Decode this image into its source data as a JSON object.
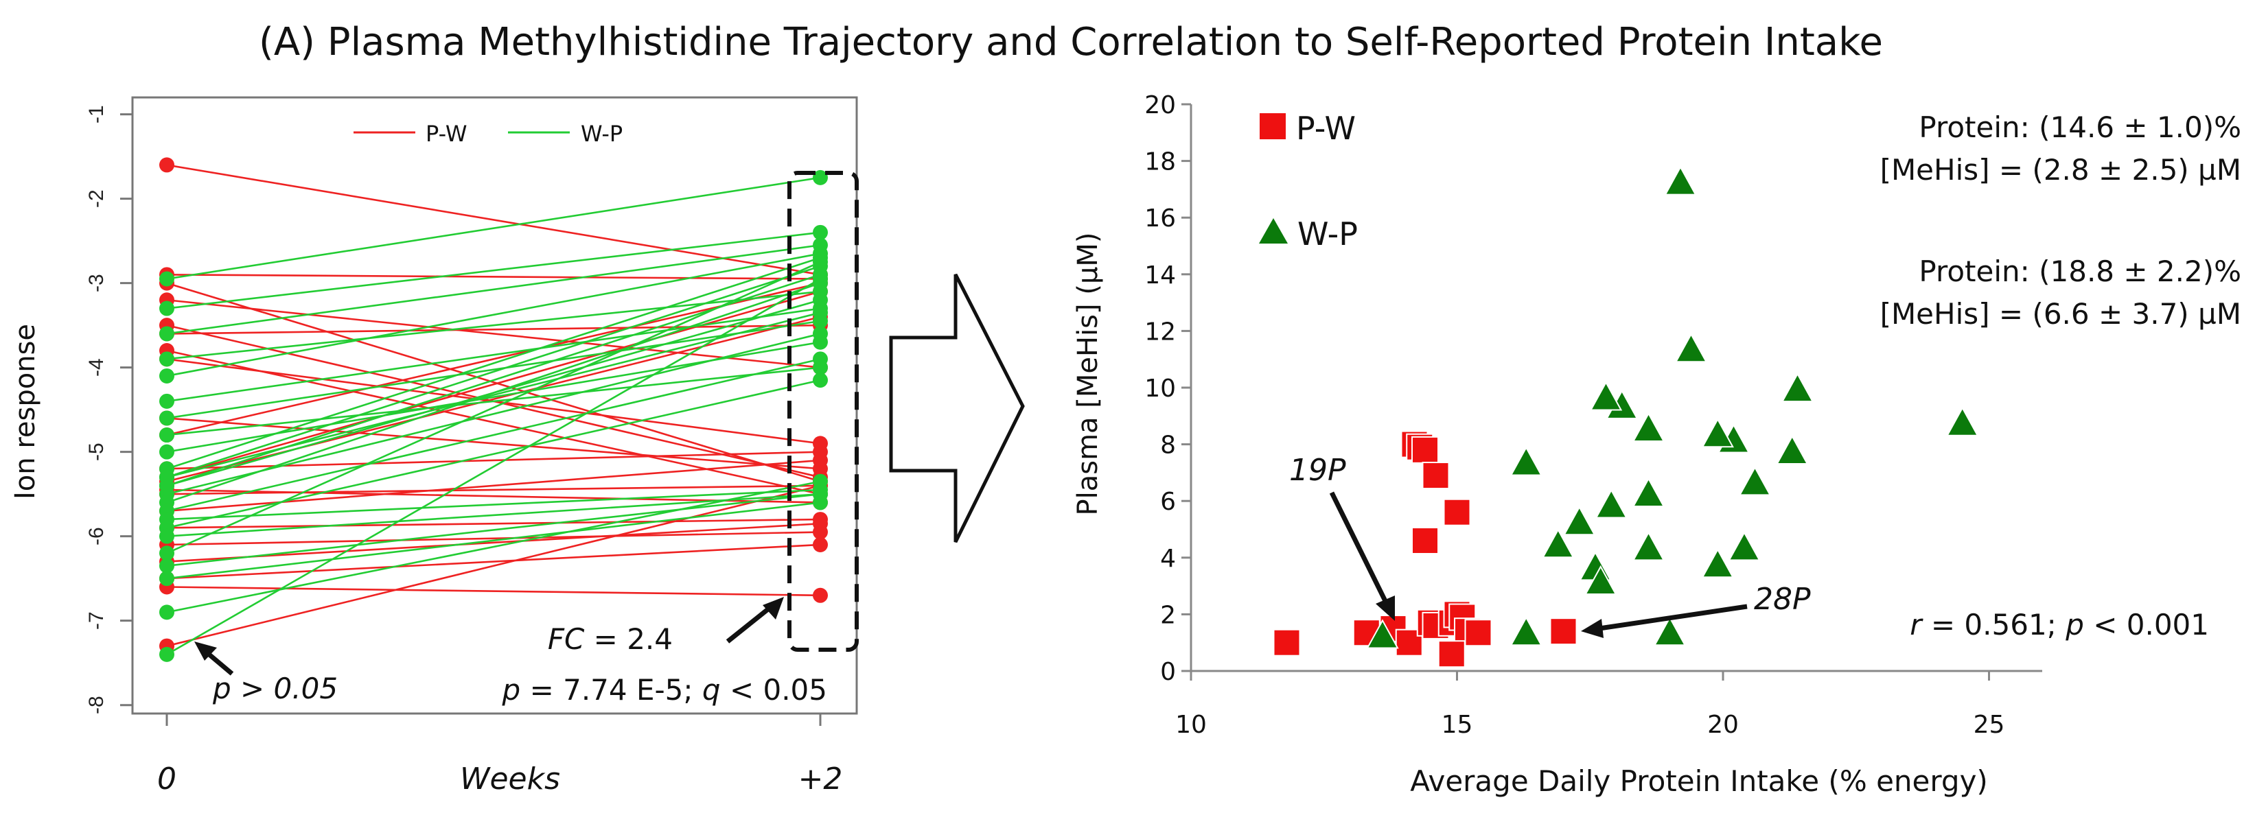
{
  "figure_title": "(A) Plasma Methylhistidine Trajectory and Correlation to Self-Reported Protein Intake",
  "colors": {
    "pw": "#ee2222",
    "wp": "#22cc33",
    "pw_square": "#ee1111",
    "wp_triangle": "#0b7a0b",
    "stat_pw": "#9a1515",
    "stat_wp": "#1f8a1f"
  },
  "chart_data": [
    {
      "type": "line",
      "name": "left-panel",
      "ylabel": "Ion response",
      "xlabel_center": "Weeks",
      "x_tick_labels": [
        "0",
        "+2"
      ],
      "y_tick_labels": [
        "-1",
        "-2",
        "-3",
        "-4",
        "-5",
        "-6",
        "-7",
        "-8"
      ],
      "ylim": [
        -8.1,
        -0.8
      ],
      "legend": [
        {
          "label": "P-W",
          "color": "#ee2222"
        },
        {
          "label": "W-P",
          "color": "#22cc33"
        }
      ],
      "pvalue_start": "p > 0.05",
      "fc_label": "FC",
      "fc_value": "= 2.4",
      "p_label": "p",
      "p_value": "= 7.74 E-5;",
      "q_label": "q",
      "q_value": "< 0.05",
      "series": [
        {
          "name": "P-W",
          "pairs": [
            [
              -1.6,
              -2.9
            ],
            [
              -2.9,
              -2.95
            ],
            [
              -3.0,
              -5.35
            ],
            [
              -3.2,
              -4.0
            ],
            [
              -3.5,
              -5.3
            ],
            [
              -3.6,
              -3.5
            ],
            [
              -3.8,
              -5.5
            ],
            [
              -3.9,
              -4.9
            ],
            [
              -4.6,
              -5.2
            ],
            [
              -4.8,
              -3.0
            ],
            [
              -5.2,
              -5.0
            ],
            [
              -5.5,
              -5.4
            ],
            [
              -5.7,
              -5.1
            ],
            [
              -5.9,
              -5.8
            ],
            [
              -6.1,
              -5.95
            ],
            [
              -6.3,
              -5.85
            ],
            [
              -6.5,
              -6.1
            ],
            [
              -6.6,
              -6.7
            ],
            [
              -7.3,
              -5.4
            ],
            [
              -5.3,
              -3.1
            ],
            [
              -5.35,
              -3.4
            ],
            [
              -5.45,
              -5.6
            ]
          ]
        },
        {
          "name": "W-P",
          "pairs": [
            [
              -2.95,
              -1.75
            ],
            [
              -3.3,
              -2.4
            ],
            [
              -3.6,
              -2.55
            ],
            [
              -3.9,
              -3.1
            ],
            [
              -4.1,
              -2.65
            ],
            [
              -4.4,
              -3.3
            ],
            [
              -4.6,
              -3.45
            ],
            [
              -4.8,
              -4.0
            ],
            [
              -5.0,
              -3.7
            ],
            [
              -5.2,
              -2.7
            ],
            [
              -5.3,
              -2.8
            ],
            [
              -5.4,
              -3.2
            ],
            [
              -5.5,
              -3.6
            ],
            [
              -5.6,
              -3.0
            ],
            [
              -5.7,
              -3.9
            ],
            [
              -5.8,
              -5.45
            ],
            [
              -5.9,
              -4.15
            ],
            [
              -6.0,
              -5.5
            ],
            [
              -6.2,
              -2.75
            ],
            [
              -6.35,
              -5.5
            ],
            [
              -6.5,
              -5.6
            ],
            [
              -6.9,
              -5.35
            ],
            [
              -7.4,
              -2.95
            ],
            [
              -5.3,
              -3.35
            ],
            [
              -5.4,
              -2.9
            ]
          ]
        }
      ]
    },
    {
      "type": "scatter",
      "name": "right-panel",
      "xlabel": "Average Daily Protein Intake (% energy)",
      "ylabel": "Plasma [MeHis] (µM)",
      "xlim": [
        10,
        26
      ],
      "ylim": [
        0,
        20
      ],
      "x_tick_labels": [
        "10",
        "15",
        "20",
        "25"
      ],
      "y_tick_labels": [
        "0",
        "2",
        "4",
        "6",
        "8",
        "10",
        "12",
        "14",
        "16",
        "18",
        "20"
      ],
      "legend": [
        {
          "label": "P-W",
          "marker": "square"
        },
        {
          "label": "W-P",
          "marker": "triangle"
        }
      ],
      "stats_pw_protein": "Protein: (14.6 ± 1.0)%",
      "stats_pw_mehis": "[MeHis] = (2.8 ± 2.5) µM",
      "stats_wp_protein": "Protein: (18.8 ± 2.2)%",
      "stats_wp_mehis": "[MeHis] = (6.6 ± 3.7) µM",
      "r_label": "r",
      "r_value": "= 0.561;",
      "p_label": "p",
      "p_value": "< 0.001",
      "annotation_19p": "19P",
      "annotation_28p": "28P",
      "series": [
        {
          "name": "P-W",
          "points": [
            [
              11.8,
              1.0
            ],
            [
              13.3,
              1.35
            ],
            [
              13.8,
              1.5
            ],
            [
              14.1,
              1.0
            ],
            [
              14.5,
              1.7
            ],
            [
              14.6,
              1.6
            ],
            [
              14.9,
              1.7
            ],
            [
              15.0,
              2.0
            ],
            [
              15.1,
              1.9
            ],
            [
              15.2,
              1.4
            ],
            [
              15.4,
              1.35
            ],
            [
              14.9,
              0.6
            ],
            [
              14.2,
              8.0
            ],
            [
              14.3,
              7.9
            ],
            [
              14.4,
              7.8
            ],
            [
              14.6,
              6.9
            ],
            [
              14.4,
              4.6
            ],
            [
              15.0,
              5.6
            ],
            [
              17.0,
              1.4
            ]
          ]
        },
        {
          "name": "W-P",
          "points": [
            [
              13.6,
              1.2
            ],
            [
              16.3,
              7.3
            ],
            [
              16.3,
              1.3
            ],
            [
              16.9,
              4.4
            ],
            [
              17.3,
              5.2
            ],
            [
              17.6,
              3.6
            ],
            [
              17.7,
              3.1
            ],
            [
              17.9,
              5.8
            ],
            [
              18.1,
              9.3
            ],
            [
              18.6,
              8.5
            ],
            [
              18.6,
              6.2
            ],
            [
              18.6,
              4.3
            ],
            [
              19.0,
              1.3
            ],
            [
              19.2,
              17.2
            ],
            [
              19.4,
              11.3
            ],
            [
              19.9,
              3.7
            ],
            [
              20.2,
              8.1
            ],
            [
              20.4,
              4.3
            ],
            [
              20.6,
              6.6
            ],
            [
              21.3,
              7.7
            ],
            [
              21.4,
              9.9
            ],
            [
              24.5,
              8.7
            ],
            [
              17.8,
              9.6
            ],
            [
              19.9,
              8.3
            ]
          ]
        }
      ]
    }
  ]
}
